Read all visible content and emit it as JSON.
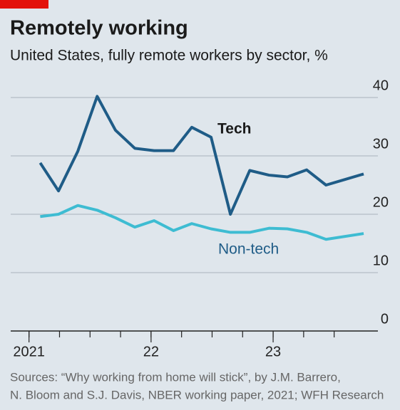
{
  "chart_data": {
    "type": "line",
    "title": "Remotely working",
    "subtitle": "United States, fully remote workers by sector, %",
    "x": [
      1.1,
      2.9,
      4.8,
      6.7,
      8.5,
      10.4,
      12.3,
      14.2,
      16.0,
      17.9,
      19.8,
      21.7,
      23.6,
      25.4,
      27.3,
      29.2,
      32.9
    ],
    "series": [
      {
        "name": "Tech",
        "color": "#1f5c87",
        "values": [
          28.8,
          24.0,
          30.8,
          40.2,
          34.4,
          31.3,
          30.9,
          30.9,
          34.9,
          33.2,
          20.0,
          27.5,
          26.7,
          26.4,
          27.6,
          25.0,
          26.9
        ]
      },
      {
        "name": "Non-tech",
        "color": "#3ebcd2",
        "values": [
          19.6,
          20.0,
          21.5,
          20.7,
          19.4,
          17.8,
          18.9,
          17.2,
          18.4,
          17.5,
          16.9,
          16.9,
          17.6,
          17.5,
          16.9,
          15.7,
          16.7
        ]
      }
    ],
    "xlim": [
      -1.8,
      34.3
    ],
    "xticks": [
      0,
      3,
      6,
      9,
      12,
      15,
      18,
      21,
      24,
      27,
      30
    ],
    "xticklabels": [
      {
        "value": 0,
        "label": "2021"
      },
      {
        "value": 12,
        "label": "22"
      },
      {
        "value": 24,
        "label": "23"
      }
    ],
    "ylim": [
      0,
      42
    ],
    "yticks": [
      0,
      10,
      20,
      30,
      40
    ],
    "grid": true,
    "source": [
      "Sources: “Why working from home will stick”, by J.M. Barrero,",
      "N. Bloom and S.J. Davis, NBER working paper, 2021; WFH Research"
    ]
  }
}
